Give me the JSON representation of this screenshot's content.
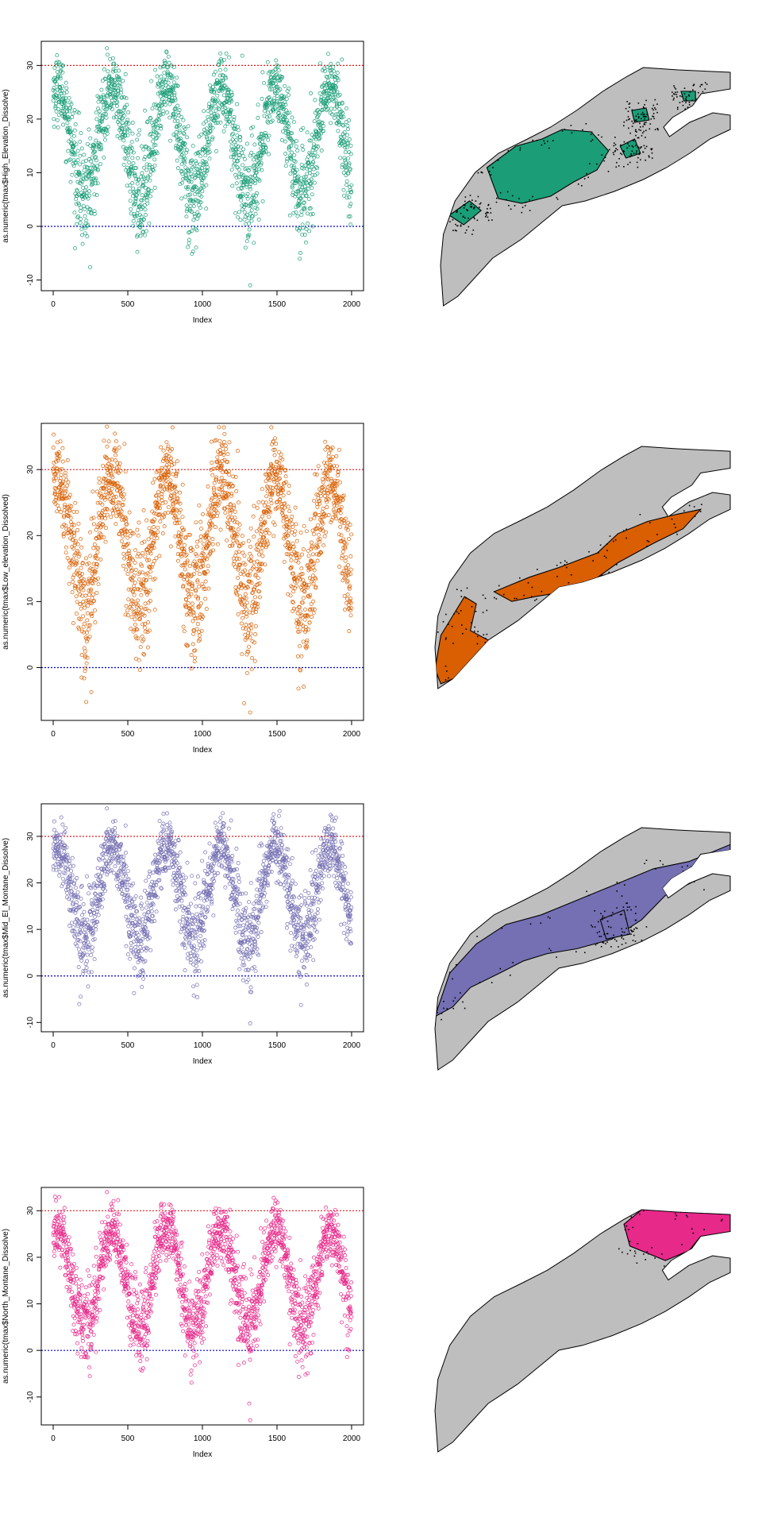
{
  "chart_data": [
    {
      "type": "scatter",
      "xlabel": "Index",
      "ylabel": "as.numeric(tmax$High_Elevation_Dissolve)",
      "xlim": [
        -80,
        2080
      ],
      "ylim": [
        -12,
        34.5
      ],
      "xticks": [
        0,
        500,
        1000,
        1500,
        2000
      ],
      "yticks": [
        -10,
        0,
        10,
        20,
        30
      ],
      "hlines": [
        {
          "y": 30,
          "color": "#e41a1c",
          "style": "dotted"
        },
        {
          "y": 0,
          "color": "#0000cc",
          "style": "dotted"
        }
      ],
      "point_color": "#1b9e77",
      "n_points": 2000,
      "series_summary": {
        "pattern": "annual seasonal cycle",
        "period_index": 365,
        "first_peak_index": 30,
        "summer_mean": 26,
        "winter_mean": 6,
        "max_value": 33.2,
        "min_value": -11
      },
      "map": {
        "fill_color": "#1b9e77",
        "region": "High Elevation"
      }
    },
    {
      "type": "scatter",
      "xlabel": "Index",
      "ylabel": "as.numeric(tmax$Low_elevation_Dissolved)",
      "xlim": [
        -80,
        2080
      ],
      "ylim": [
        -8,
        37
      ],
      "xticks": [
        0,
        500,
        1000,
        1500,
        2000
      ],
      "yticks": [
        0,
        10,
        20,
        30
      ],
      "hlines": [
        {
          "y": 30,
          "color": "#e41a1c",
          "style": "dotted"
        },
        {
          "y": 0,
          "color": "#0000cc",
          "style": "dotted"
        }
      ],
      "point_color": "#d95f02",
      "n_points": 2000,
      "series_summary": {
        "pattern": "annual seasonal cycle",
        "period_index": 365,
        "first_peak_index": 30,
        "summer_mean": 29,
        "winter_mean": 10,
        "max_value": 36.5,
        "min_value": -6.8
      },
      "map": {
        "fill_color": "#d95f02",
        "region": "Low Elevation"
      }
    },
    {
      "type": "scatter",
      "xlabel": "Index",
      "ylabel": "as.numeric(tmax$Mid_El_Montane_Dissolve)",
      "xlim": [
        -80,
        2080
      ],
      "ylim": [
        -12,
        37
      ],
      "xticks": [
        0,
        500,
        1000,
        1500,
        2000
      ],
      "yticks": [
        -10,
        0,
        10,
        20,
        30
      ],
      "hlines": [
        {
          "y": 30,
          "color": "#e41a1c",
          "style": "dotted"
        },
        {
          "y": 0,
          "color": "#0000cc",
          "style": "dotted"
        }
      ],
      "point_color": "#7570b3",
      "n_points": 2000,
      "series_summary": {
        "pattern": "annual seasonal cycle",
        "period_index": 365,
        "first_peak_index": 30,
        "summer_mean": 28,
        "winter_mean": 8,
        "max_value": 36,
        "min_value": -10.2
      },
      "map": {
        "fill_color": "#7570b3",
        "region": "Mid Elevation Montane"
      }
    },
    {
      "type": "scatter",
      "xlabel": "Index",
      "ylabel": "as.numeric(tmax$North_Montane_Dissolve)",
      "xlim": [
        -80,
        2080
      ],
      "ylim": [
        -16,
        35
      ],
      "xticks": [
        0,
        500,
        1000,
        1500,
        2000
      ],
      "yticks": [
        -10,
        0,
        10,
        20,
        30
      ],
      "hlines": [
        {
          "y": 30,
          "color": "#e41a1c",
          "style": "dotted"
        },
        {
          "y": 0,
          "color": "#0000cc",
          "style": "dotted"
        }
      ],
      "point_color": "#e7298a",
      "n_points": 2000,
      "series_summary": {
        "pattern": "annual seasonal cycle",
        "period_index": 365,
        "first_peak_index": 30,
        "summer_mean": 26,
        "winter_mean": 5,
        "max_value": 34,
        "min_value": -15
      },
      "map": {
        "fill_color": "#e7298a",
        "region": "North Montane"
      }
    }
  ],
  "map_base_color": "#bebebe"
}
